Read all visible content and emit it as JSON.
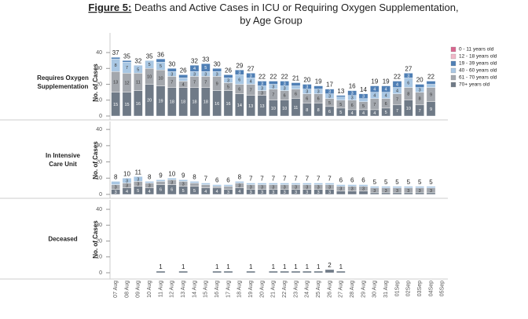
{
  "chart_data": [
    {
      "type": "bar",
      "stacked": true,
      "title_prefix": "Figure 5:",
      "title": "Deaths and Active Cases in ICU or Requiring Oxygen Supplementation, by Age Group",
      "row_label": "Requires Oxygen Supplementation",
      "y_label": "No. of Cases",
      "categories": [
        "07 Aug",
        "08 Aug",
        "09 Aug",
        "10 Aug",
        "11 Aug",
        "12 Aug",
        "13 Aug",
        "14 Aug",
        "15 Aug",
        "16 Aug",
        "17 Aug",
        "18 Aug",
        "19 Aug",
        "20 Aug",
        "21 Aug",
        "22 Aug",
        "23 Aug",
        "24 Aug",
        "25 Aug",
        "26 Aug",
        "27 Aug",
        "28 Aug",
        "29 Aug",
        "30 Aug",
        "31 Aug",
        "01Sep",
        "02Sep",
        "03Sep",
        "04Sep",
        "05Sep"
      ],
      "ylim": [
        0,
        42
      ],
      "yticks": [
        0,
        10,
        20,
        30,
        40
      ],
      "legend": [
        {
          "name": "0 - 11 years old",
          "color": "#d9668f"
        },
        {
          "name": "12 - 18 years old",
          "color": "#f0b8c8"
        },
        {
          "name": "19 - 39 years old",
          "color": "#4f7fb5"
        },
        {
          "name": "40 - 60 years old",
          "color": "#a9c7e3"
        },
        {
          "name": "61 - 70 years old",
          "color": "#a3a7ad"
        },
        {
          "name": "70+ years old",
          "color": "#6f7a87"
        }
      ],
      "series": [
        {
          "name": "70+ years old",
          "color": "#6f7a87",
          "values": [
            15,
            15,
            16,
            20,
            19,
            18,
            18,
            18,
            18,
            16,
            16,
            14,
            13,
            13,
            10,
            10,
            11,
            8,
            8,
            6,
            5,
            4,
            4,
            4,
            5,
            7,
            10,
            7,
            9,
            null
          ]
        },
        {
          "name": "61 - 70 years old",
          "color": "#a3a7ad",
          "values": [
            13,
            12,
            11,
            10,
            10,
            7,
            4,
            7,
            7,
            9,
            5,
            6,
            7,
            3,
            7,
            6,
            6,
            6,
            6,
            5,
            5,
            6,
            5,
            7,
            6,
            7,
            8,
            8,
            9,
            null
          ]
        },
        {
          "name": "40 - 60 years old",
          "color": "#a9c7e3",
          "values": [
            8,
            7,
            5,
            5,
            5,
            3,
            2,
            3,
            3,
            3,
            3,
            6,
            4,
            3,
            3,
            3,
            2,
            3,
            3,
            3,
            2,
            3,
            2,
            4,
            4,
            4,
            6,
            3,
            2,
            null
          ]
        },
        {
          "name": "19 - 39 years old",
          "color": "#4f7fb5",
          "values": [
            1,
            1,
            0,
            0,
            2,
            2,
            2,
            4,
            5,
            2,
            2,
            3,
            3,
            3,
            2,
            3,
            2,
            3,
            2,
            3,
            1,
            3,
            3,
            4,
            4,
            4,
            3,
            2,
            2,
            null
          ]
        }
      ],
      "totals": [
        37,
        35,
        32,
        35,
        36,
        30,
        26,
        32,
        33,
        30,
        26,
        29,
        27,
        22,
        22,
        22,
        21,
        20,
        19,
        17,
        13,
        16,
        14,
        19,
        19,
        22,
        27,
        20,
        22,
        null
      ]
    },
    {
      "type": "bar",
      "stacked": true,
      "row_label": "In Intensive Care Unit",
      "y_label": "No. of Cases",
      "ylim": [
        0,
        42
      ],
      "yticks": [
        0,
        10,
        20,
        30,
        40
      ],
      "series": [
        {
          "name": "70+ years old",
          "color": "#6f7a87",
          "values": [
            3,
            4,
            5,
            4,
            6,
            6,
            5,
            5,
            4,
            4,
            3,
            4,
            3,
            3,
            3,
            3,
            3,
            3,
            3,
            3,
            2,
            2,
            2,
            1,
            1,
            1,
            1,
            1,
            1,
            null
          ]
        },
        {
          "name": "61 - 70 years old",
          "color": "#a3a7ad",
          "values": [
            3,
            3,
            3,
            3,
            2,
            3,
            3,
            2,
            2,
            1,
            2,
            3,
            3,
            3,
            3,
            3,
            3,
            3,
            3,
            3,
            3,
            3,
            3,
            3,
            3,
            3,
            3,
            3,
            3,
            null
          ]
        },
        {
          "name": "40 - 60 years old",
          "color": "#a9c7e3",
          "values": [
            2,
            3,
            3,
            1,
            1,
            1,
            1,
            1,
            1,
            1,
            1,
            1,
            1,
            1,
            1,
            1,
            1,
            1,
            1,
            1,
            1,
            1,
            1,
            1,
            1,
            1,
            1,
            1,
            1,
            null
          ]
        }
      ],
      "totals": [
        8,
        10,
        11,
        8,
        9,
        10,
        9,
        8,
        7,
        6,
        6,
        8,
        7,
        7,
        7,
        7,
        7,
        7,
        7,
        7,
        6,
        6,
        6,
        5,
        5,
        5,
        5,
        5,
        5,
        null
      ]
    },
    {
      "type": "bar",
      "stacked": true,
      "row_label": "Deceased",
      "y_label": "No. of Cases",
      "ylim": [
        0,
        42
      ],
      "yticks": [
        0,
        10,
        20,
        30,
        40
      ],
      "series": [
        {
          "name": "70+ years old",
          "color": "#6f7a87",
          "values": [
            0,
            0,
            0,
            0,
            1,
            0,
            1,
            0,
            0,
            1,
            1,
            0,
            1,
            0,
            1,
            1,
            1,
            1,
            1,
            2,
            1,
            0,
            0,
            0,
            0,
            0,
            0,
            0,
            0,
            null
          ]
        }
      ]
    }
  ]
}
